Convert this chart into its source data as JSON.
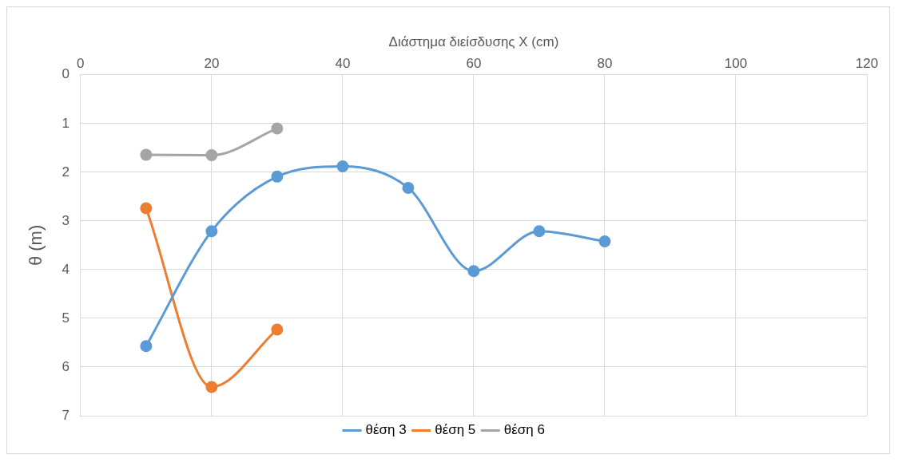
{
  "chart_data": {
    "type": "line",
    "xlabel": "Διάστημα διείσδυσης X (cm)",
    "ylabel": "θ (m)",
    "xlim": [
      0,
      120
    ],
    "xticks": [
      0,
      20,
      40,
      60,
      80,
      100,
      120
    ],
    "ylim": [
      7,
      0
    ],
    "yticks": [
      0,
      1,
      2,
      3,
      4,
      5,
      6,
      7
    ],
    "grid": true,
    "legend": "bottom",
    "marker": "circle",
    "line_style": "solid",
    "series": [
      {
        "name": "θέση 3",
        "color": "#5b9bd5",
        "x": [
          10,
          20,
          30,
          40,
          50,
          60,
          70,
          80
        ],
        "values": [
          5.57,
          3.21,
          2.09,
          1.88,
          2.32,
          4.03,
          3.21,
          3.42
        ]
      },
      {
        "name": "θέση 5",
        "color": "#ed7d31",
        "x": [
          10,
          20,
          30
        ],
        "values": [
          2.74,
          6.41,
          5.23
        ]
      },
      {
        "name": "θέση 6",
        "color": "#a5a5a5",
        "x": [
          10,
          20,
          30
        ],
        "values": [
          1.64,
          1.65,
          1.1
        ]
      }
    ]
  }
}
